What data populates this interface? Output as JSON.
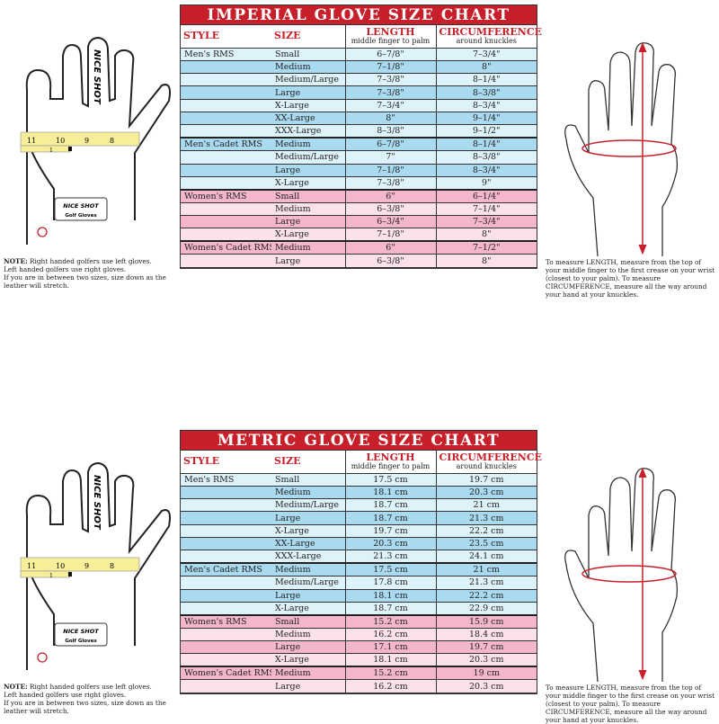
{
  "imperial": {
    "title": "IMPERIAL GLOVE SIZE CHART",
    "headers": {
      "style": "STYLE",
      "size": "SIZE",
      "length": "LENGTH",
      "length_sub": "middle finger to palm",
      "circ": "CIRCUMFERENCE",
      "circ_sub": "around knuckles"
    },
    "rows": [
      {
        "style": "Men's RMS",
        "size": "Small",
        "length": "6–7/8\"",
        "circ": "7–3/4\"",
        "color": "blue",
        "shade": "light"
      },
      {
        "style": "",
        "size": "Medium",
        "length": "7–1/8\"",
        "circ": "8\"",
        "color": "blue",
        "shade": "dark"
      },
      {
        "style": "",
        "size": "Medium/Large",
        "length": "7–3/8\"",
        "circ": "8–1/4\"",
        "color": "blue",
        "shade": "light"
      },
      {
        "style": "",
        "size": "Large",
        "length": "7–3/8\"",
        "circ": "8–3/8\"",
        "color": "blue",
        "shade": "dark"
      },
      {
        "style": "",
        "size": "X-Large",
        "length": "7–3/4\"",
        "circ": "8–3/4\"",
        "color": "blue",
        "shade": "light"
      },
      {
        "style": "",
        "size": "XX-Large",
        "length": "8\"",
        "circ": "9–1/4\"",
        "color": "blue",
        "shade": "dark"
      },
      {
        "style": "",
        "size": "XXX-Large",
        "length": "8–3/8\"",
        "circ": "9–1/2\"",
        "color": "blue",
        "shade": "light"
      },
      {
        "style": "Men's Cadet RMS",
        "size": "Medium",
        "length": "6–7/8\"",
        "circ": "8–1/4\"",
        "color": "blue",
        "shade": "dark"
      },
      {
        "style": "",
        "size": "Medium/Large",
        "length": "7\"",
        "circ": "8–3/8\"",
        "color": "blue",
        "shade": "light"
      },
      {
        "style": "",
        "size": "Large",
        "length": "7–1/8\"",
        "circ": "8–3/4\"",
        "color": "blue",
        "shade": "dark"
      },
      {
        "style": "",
        "size": "X-Large",
        "length": "7–3/8\"",
        "circ": "9\"",
        "color": "blue",
        "shade": "light"
      },
      {
        "style": "Women's RMS",
        "size": "Small",
        "length": "6\"",
        "circ": "6–1/4\"",
        "color": "pink",
        "shade": "dark"
      },
      {
        "style": "",
        "size": "Medium",
        "length": "6–3/8\"",
        "circ": "7–1/4\"",
        "color": "pink",
        "shade": "light"
      },
      {
        "style": "",
        "size": "Large",
        "length": "6–3/4\"",
        "circ": "7–3/4\"",
        "color": "pink",
        "shade": "dark"
      },
      {
        "style": "",
        "size": "X-Large",
        "length": "7–1/8\"",
        "circ": "8\"",
        "color": "pink",
        "shade": "light"
      },
      {
        "style": "Women's Cadet RMS",
        "size": "Medium",
        "length": "6\"",
        "circ": "7–1/2\"",
        "color": "pink",
        "shade": "dark"
      },
      {
        "style": "",
        "size": "Large",
        "length": "6–3/8\"",
        "circ": "8\"",
        "color": "pink",
        "shade": "light"
      }
    ]
  },
  "metric": {
    "title": "METRIC GLOVE SIZE CHART",
    "headers": {
      "style": "STYLE",
      "size": "SIZE",
      "length": "LENGTH",
      "length_sub": "middle finger to palm",
      "circ": "CIRCUMFERENCE",
      "circ_sub": "around knuckles"
    },
    "rows": [
      {
        "style": "Men's RMS",
        "size": "Small",
        "length": "17.5 cm",
        "circ": "19.7 cm",
        "color": "blue",
        "shade": "light"
      },
      {
        "style": "",
        "size": "Medium",
        "length": "18.1 cm",
        "circ": "20.3 cm",
        "color": "blue",
        "shade": "dark"
      },
      {
        "style": "",
        "size": "Medium/Large",
        "length": "18.7 cm",
        "circ": "21 cm",
        "color": "blue",
        "shade": "light"
      },
      {
        "style": "",
        "size": "Large",
        "length": "18.7 cm",
        "circ": "21.3 cm",
        "color": "blue",
        "shade": "dark"
      },
      {
        "style": "",
        "size": "X-Large",
        "length": "19.7 cm",
        "circ": "22.2 cm",
        "color": "blue",
        "shade": "light"
      },
      {
        "style": "",
        "size": "XX-Large",
        "length": "20.3 cm",
        "circ": "23.5 cm",
        "color": "blue",
        "shade": "dark"
      },
      {
        "style": "",
        "size": "XXX-Large",
        "length": "21.3 cm",
        "circ": "24.1 cm",
        "color": "blue",
        "shade": "light"
      },
      {
        "style": "Men's Cadet RMS",
        "size": "Medium",
        "length": "17.5 cm",
        "circ": "21 cm",
        "color": "blue",
        "shade": "dark"
      },
      {
        "style": "",
        "size": "Medium/Large",
        "length": "17.8 cm",
        "circ": "21.3 cm",
        "color": "blue",
        "shade": "light"
      },
      {
        "style": "",
        "size": "Large",
        "length": "18.1 cm",
        "circ": "22.2 cm",
        "color": "blue",
        "shade": "dark"
      },
      {
        "style": "",
        "size": "X-Large",
        "length": "18.7 cm",
        "circ": "22.9 cm",
        "color": "blue",
        "shade": "light"
      },
      {
        "style": "Women's RMS",
        "size": "Small",
        "length": "15.2 cm",
        "circ": "15.9 cm",
        "color": "pink",
        "shade": "dark"
      },
      {
        "style": "",
        "size": "Medium",
        "length": "16.2 cm",
        "circ": "18.4 cm",
        "color": "pink",
        "shade": "light"
      },
      {
        "style": "",
        "size": "Large",
        "length": "17.1 cm",
        "circ": "19.7 cm",
        "color": "pink",
        "shade": "dark"
      },
      {
        "style": "",
        "size": "X-Large",
        "length": "18.1 cm",
        "circ": "20.3 cm",
        "color": "pink",
        "shade": "light"
      },
      {
        "style": "Women's Cadet RMS",
        "size": "Medium",
        "length": "15.2 cm",
        "circ": "19 cm",
        "color": "pink",
        "shade": "dark"
      },
      {
        "style": "",
        "size": "Large",
        "length": "16.2 cm",
        "circ": "20.3 cm",
        "color": "pink",
        "shade": "light"
      }
    ]
  },
  "note": {
    "label": "NOTE:",
    "line1": " Right handed golfers use left gloves.",
    "line2": "Left handed golfers use right gloves.",
    "line3": "If you are in between two sizes, size down as the leather will stretch."
  },
  "measure_text": "To measure LENGTH, measure from the top of your middle finger to the first crease on your wrist (closest to your palm). To measure CIRCUMFERENCE, measure all the way around your hand at your knuckles.",
  "glove": {
    "logo": "NICE SHOT",
    "patch_logo": "NICE SHOT",
    "patch_sub": "Golf Gloves",
    "ruler_ticks": [
      "11",
      "10",
      "9",
      "8"
    ],
    "ruler_sub": "1"
  },
  "colors": {
    "title_red": "#c8202a",
    "blue_dark": "#a9daef",
    "blue_light": "#def2fa",
    "pink_dark": "#f4b6cd",
    "pink_light": "#fbe1ea"
  }
}
